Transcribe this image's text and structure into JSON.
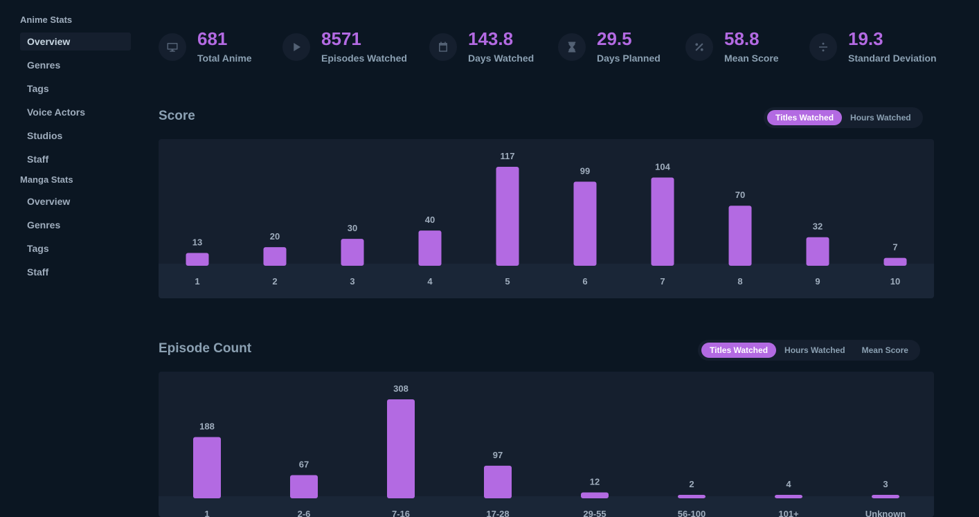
{
  "sidebar": {
    "anime_heading": "Anime Stats",
    "anime_items": [
      "Overview",
      "Genres",
      "Tags",
      "Voice Actors",
      "Studios",
      "Staff"
    ],
    "manga_heading": "Manga Stats",
    "manga_items": [
      "Overview",
      "Genres",
      "Tags",
      "Staff"
    ]
  },
  "stats": [
    {
      "value": "681",
      "label": "Total Anime",
      "icon": "tv-icon"
    },
    {
      "value": "8571",
      "label": "Episodes Watched",
      "icon": "play-icon"
    },
    {
      "value": "143.8",
      "label": "Days Watched",
      "icon": "calendar-icon"
    },
    {
      "value": "29.5",
      "label": "Days Planned",
      "icon": "hourglass-icon"
    },
    {
      "value": "58.8",
      "label": "Mean Score",
      "icon": "percent-icon"
    },
    {
      "value": "19.3",
      "label": "Standard Deviation",
      "icon": "divide-icon"
    }
  ],
  "score_section": {
    "title": "Score",
    "toggle": [
      "Titles Watched",
      "Hours Watched"
    ]
  },
  "episode_section": {
    "title": "Episode Count",
    "toggle": [
      "Titles Watched",
      "Hours Watched",
      "Mean Score"
    ]
  },
  "colors": {
    "accent": "#b36ae2",
    "background": "#0b1622",
    "panel": "#151f2e",
    "axis_band": "#1a2637",
    "text": "#9fadbd"
  },
  "chart_data": [
    {
      "type": "bar",
      "title": "Score",
      "categories": [
        "1",
        "2",
        "3",
        "4",
        "5",
        "6",
        "7",
        "8",
        "9",
        "10"
      ],
      "values": [
        13,
        20,
        30,
        40,
        117,
        99,
        104,
        70,
        32,
        7
      ],
      "xlabel": "",
      "ylabel": "",
      "ylim": [
        0,
        117
      ],
      "grid": false
    },
    {
      "type": "bar",
      "title": "Episode Count",
      "categories": [
        "1",
        "2-6",
        "7-16",
        "17-28",
        "29-55",
        "56-100",
        "101+",
        "Unknown"
      ],
      "values": [
        188,
        67,
        308,
        97,
        12,
        2,
        4,
        3
      ],
      "xlabel": "",
      "ylabel": "",
      "ylim": [
        0,
        308
      ],
      "grid": false
    }
  ]
}
